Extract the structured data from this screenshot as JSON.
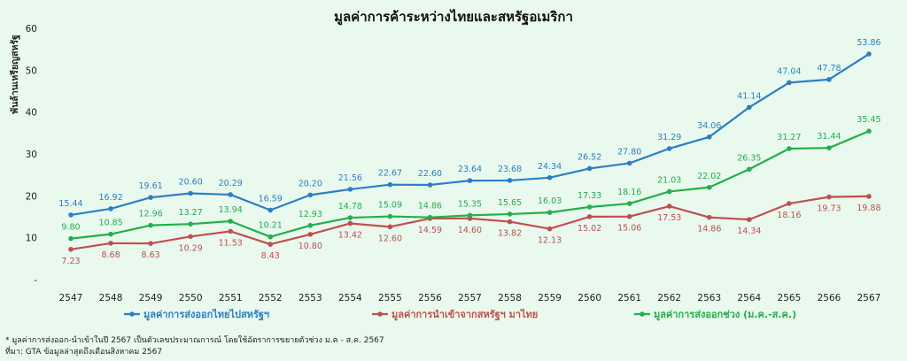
{
  "chart_data": {
    "type": "line",
    "title": "มูลค่าการค้าระหว่างไทยและสหรัฐอเมริกา",
    "ylabel": "พันล้านเหรียญสหรัฐ",
    "xlabel": "",
    "ylim": [
      0,
      60
    ],
    "y_ticks": [
      "-",
      "10",
      "20",
      "30",
      "40",
      "50",
      "60"
    ],
    "grid": false,
    "legend_position": "bottom",
    "categories": [
      "2547",
      "2548",
      "2549",
      "2550",
      "2551",
      "2552",
      "2553",
      "2554",
      "2555",
      "2556",
      "2557",
      "2558",
      "2559",
      "2560",
      "2561",
      "2562",
      "2563",
      "2564",
      "2565",
      "2566",
      "2567"
    ],
    "series": [
      {
        "name": "มูลค่าการส่งออกไทยไปสหรัฐฯ",
        "color": "#2a7fc6",
        "values": [
          15.44,
          16.92,
          19.61,
          20.6,
          20.29,
          16.59,
          20.2,
          21.56,
          22.67,
          22.6,
          23.64,
          23.68,
          24.34,
          26.52,
          27.8,
          31.29,
          34.06,
          41.14,
          47.04,
          47.78,
          53.86
        ],
        "labels": [
          "15.44",
          "16.92",
          "19.61",
          "20.60",
          "20.29",
          "16.59",
          "20.20",
          "21.56",
          "22.67",
          "22.60",
          "23.64",
          "23.68",
          "24.34",
          "26.52",
          "27.80",
          "31.29",
          "34.06",
          "41.14",
          "47.04",
          "47.78",
          "53.86"
        ]
      },
      {
        "name": "มูลค่าการนำเข้าจากสหรัฐฯ มาไทย",
        "color": "#c0504d",
        "values": [
          7.23,
          8.68,
          8.63,
          10.29,
          11.53,
          8.43,
          10.8,
          13.42,
          12.6,
          14.59,
          14.6,
          13.82,
          12.13,
          15.02,
          15.06,
          17.53,
          14.86,
          14.34,
          18.16,
          19.73,
          19.88
        ],
        "labels": [
          "7.23",
          "8.68",
          "8.63",
          "10.29",
          "11.53",
          "8.43",
          "10.80",
          "13.42",
          "12.60",
          "14.59",
          "14.60",
          "13.82",
          "12.13",
          "15.02",
          "15.06",
          "17.53",
          "14.86",
          "14.34",
          "18.16",
          "19.73",
          "19.88"
        ]
      },
      {
        "name": "มูลค่าการส่งออกช่วง (ม.ค.-ส.ค.)",
        "color": "#22b04b",
        "values": [
          9.8,
          10.85,
          12.96,
          13.27,
          13.94,
          10.21,
          12.93,
          14.78,
          15.09,
          14.86,
          15.35,
          15.65,
          16.03,
          17.33,
          18.16,
          21.03,
          22.02,
          26.35,
          31.27,
          31.44,
          35.45
        ],
        "labels": [
          "9.80",
          "10.85",
          "12.96",
          "13.27",
          "13.94",
          "10.21",
          "12.93",
          "14.78",
          "15.09",
          "14.86",
          "15.35",
          "15.65",
          "16.03",
          "17.33",
          "18.16",
          "21.03",
          "22.02",
          "26.35",
          "31.27",
          "31.44",
          "35.45"
        ]
      }
    ],
    "notes": [
      "*   มูลค่าการส่งออก-นำเข้าในปี 2567 เป็นตัวเลขประมาณการณ์ โดยใช้อัตราการขยายตัวช่วง ม.ค - ส.ค. 2567",
      "ที่มา: GTA ข้อมูลล่าสุดถึงเดือนสิงหาคม 2567"
    ]
  }
}
